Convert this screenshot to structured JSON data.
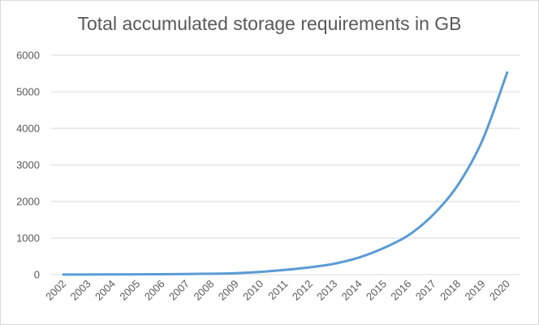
{
  "chart_data": {
    "type": "line",
    "title": "Total accumulated storage requirements in GB",
    "xlabel": "",
    "ylabel": "",
    "x": [
      "2002",
      "2003",
      "2004",
      "2005",
      "2006",
      "2007",
      "2008",
      "2009",
      "2010",
      "2011",
      "2012",
      "2013",
      "2014",
      "2015",
      "2016",
      "2017",
      "2018",
      "2019",
      "2020"
    ],
    "series": [
      {
        "values": [
          2,
          4,
          6,
          8,
          12,
          18,
          25,
          40,
          75,
          130,
          200,
          300,
          470,
          730,
          1080,
          1640,
          2450,
          3680,
          5530
        ]
      }
    ],
    "ylim": [
      0,
      6000
    ],
    "yticks": [
      "0",
      "1000",
      "2000",
      "3000",
      "4000",
      "5000",
      "6000"
    ],
    "grid": true,
    "legend": "none",
    "colors": {
      "line": "#5b9bd5",
      "grid": "#d9d9d9",
      "text": "#595959"
    }
  }
}
